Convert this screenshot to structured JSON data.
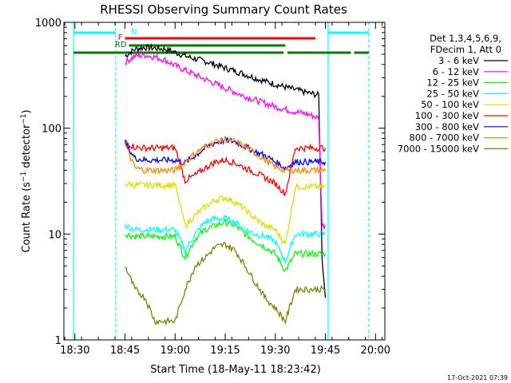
{
  "chart_data": {
    "type": "line",
    "title": "RHESSI Observing Summary Count Rates",
    "xlabel": "Start Time (18-May-11 18:23:42)",
    "ylabel": "Count Rate (s⁻¹ detector⁻¹)",
    "ylabel_main": "Count Rate (s",
    "ylabel_sup1": "−1",
    "ylabel_mid": " detector",
    "ylabel_sup2": "−1",
    "ylabel_end": ")",
    "y_scale": "log",
    "ylim": [
      1,
      1000
    ],
    "xlim_minutes": [
      -33.3,
      7.2
    ],
    "x_ticks": [
      {
        "label": "18:30",
        "minutes": -30
      },
      {
        "label": "18:45",
        "minutes": -15
      },
      {
        "label": "19:00",
        "minutes": 0
      },
      {
        "label": "19:15",
        "minutes": 15
      },
      {
        "label": "19:30",
        "minutes": 30
      },
      {
        "label": "19:45",
        "minutes": 45
      },
      {
        "label": "20:00",
        "minutes": 60
      }
    ],
    "y_ticks": [
      {
        "label": "1",
        "value": 1
      },
      {
        "label": "10",
        "value": 10
      },
      {
        "label": "100",
        "value": 100
      },
      {
        "label": "1000",
        "value": 1000
      }
    ],
    "legend_header": [
      "Det 1,3,4,5,6,9,",
      "FDecim 1, Att 0"
    ],
    "legend_placement": "right",
    "series": [
      {
        "name": "3 - 6 keV",
        "color": "#000000",
        "x": [
          -15,
          -12,
          -9,
          -6,
          -3,
          0,
          5,
          10,
          15,
          20,
          25,
          30,
          35,
          40,
          43,
          44,
          45
        ],
        "values": [
          480,
          560,
          580,
          570,
          560,
          520,
          460,
          420,
          370,
          330,
          290,
          260,
          235,
          215,
          205,
          6,
          2.5
        ]
      },
      {
        "name": "6 - 12 keV",
        "color": "#ff00ff",
        "x": [
          -15,
          -12,
          -9,
          -6,
          -3,
          0,
          5,
          10,
          15,
          20,
          25,
          30,
          35,
          40,
          43,
          44,
          45
        ],
        "values": [
          420,
          480,
          490,
          470,
          440,
          390,
          330,
          280,
          240,
          205,
          180,
          160,
          145,
          135,
          125,
          12,
          12
        ]
      },
      {
        "name": "12 - 25 keV",
        "color": "#00ff00",
        "x": [
          -15,
          -12,
          -9,
          -6,
          -3,
          0,
          3,
          6,
          9,
          12,
          15,
          18,
          21,
          24,
          27,
          30,
          33,
          36,
          39,
          42,
          45
        ],
        "values": [
          10,
          9.5,
          9.5,
          9.5,
          9.5,
          9.5,
          6,
          9,
          11,
          12,
          13,
          12,
          10,
          8.5,
          7.5,
          6.5,
          4.5,
          6.5,
          6.5,
          6.5,
          6.5
        ]
      },
      {
        "name": "25 - 50 keV",
        "color": "#00ffff",
        "x": [
          -15,
          -12,
          -9,
          -6,
          -3,
          0,
          3,
          6,
          9,
          12,
          15,
          18,
          21,
          24,
          27,
          30,
          33,
          36,
          39,
          42,
          45
        ],
        "values": [
          12,
          11,
          11,
          11,
          11,
          11,
          7,
          10,
          13,
          14,
          14,
          13,
          11,
          10,
          9.5,
          8.5,
          5.5,
          10,
          10,
          10,
          10
        ]
      },
      {
        "name": "50 - 100 keV",
        "color": "#dddd00",
        "x": [
          -15,
          -12,
          -9,
          -6,
          -3,
          0,
          3,
          6,
          9,
          12,
          15,
          18,
          21,
          24,
          27,
          30,
          33,
          36,
          39,
          42,
          45
        ],
        "values": [
          30,
          29,
          29,
          29,
          29,
          29,
          12,
          15,
          18,
          21,
          22,
          20,
          17,
          14,
          12,
          11,
          8,
          28,
          28,
          28,
          28
        ]
      },
      {
        "name": "100 - 300 keV",
        "color": "#ff0000",
        "x": [
          -15,
          -12,
          -9,
          -6,
          -3,
          0,
          3,
          6,
          9,
          12,
          15,
          18,
          21,
          24,
          27,
          30,
          33,
          36,
          39,
          42,
          45
        ],
        "values": [
          75,
          66,
          65,
          65,
          65,
          65,
          32,
          36,
          42,
          48,
          50,
          47,
          42,
          38,
          34,
          30,
          24,
          65,
          65,
          65,
          65
        ]
      },
      {
        "name": "300 - 800 keV",
        "color": "#0000ff",
        "x": [
          -15,
          -12,
          -9,
          -6,
          -3,
          0,
          3,
          6,
          9,
          12,
          15,
          18,
          21,
          24,
          27,
          30,
          33,
          36,
          39,
          42,
          45
        ],
        "values": [
          72,
          52,
          50,
          50,
          50,
          50,
          47,
          55,
          65,
          73,
          77,
          75,
          67,
          60,
          55,
          48,
          42,
          48,
          48,
          48,
          48
        ]
      },
      {
        "name": "800 - 7000 keV",
        "color": "#ff8800",
        "x": [
          -15,
          -12,
          -9,
          -6,
          -3,
          0,
          3,
          6,
          9,
          12,
          15,
          18,
          21,
          24,
          27,
          30,
          33,
          36,
          39,
          42,
          45
        ],
        "values": [
          70,
          42,
          40,
          40,
          40,
          40,
          48,
          58,
          67,
          75,
          78,
          75,
          67,
          58,
          50,
          43,
          40,
          40,
          40,
          40,
          40
        ]
      },
      {
        "name": "7000 - 15000 keV",
        "color": "#808000",
        "x": [
          -15,
          -12,
          -9,
          -6,
          -3,
          0,
          3,
          6,
          9,
          12,
          15,
          18,
          21,
          24,
          27,
          30,
          33,
          36,
          39,
          42,
          45
        ],
        "values": [
          5,
          3,
          2.5,
          1.5,
          1.5,
          1.5,
          3,
          5,
          6,
          7.5,
          8,
          7,
          5,
          3.5,
          2.5,
          2,
          1.5,
          3,
          3,
          3,
          3
        ]
      }
    ],
    "flag_bars": [
      {
        "label": "N",
        "color": "#00ffff",
        "segments": [
          [
            -30.4,
            -17.8
          ],
          [
            45.8,
            58
          ]
        ]
      },
      {
        "label": "F",
        "color": "#ff0000",
        "segments": [
          [
            -15,
            42
          ]
        ]
      },
      {
        "label": "RD",
        "color": "#008000",
        "segments": [
          [
            -13.8,
            33
          ]
        ]
      },
      {
        "label": "",
        "color": "#008000",
        "segments": [
          [
            -30.4,
            32.5
          ],
          [
            33.6,
            52.6
          ],
          [
            53.6,
            58
          ]
        ]
      }
    ],
    "vlines": [
      {
        "minutes": -30.4,
        "color": "#00ffff",
        "dash": false
      },
      {
        "minutes": -17.8,
        "color": "#00ffff",
        "dash": true
      },
      {
        "minutes": 45.8,
        "color": "#00ffff",
        "dash": false
      },
      {
        "minutes": 58,
        "color": "#00ffff",
        "dash": true
      }
    ]
  },
  "footer": {
    "timestamp": "17-Oct-2021 07:39"
  }
}
